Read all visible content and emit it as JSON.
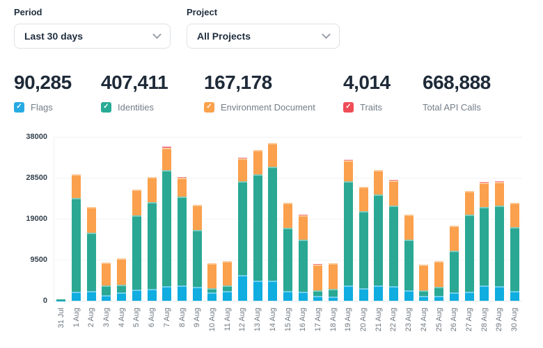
{
  "filters": {
    "period": {
      "label": "Period",
      "value": "Last 30 days"
    },
    "project": {
      "label": "Project",
      "value": "All Projects"
    }
  },
  "icons": {
    "check": "✓",
    "chevron": "chevron-down"
  },
  "stats": [
    {
      "value": "90,285",
      "label": "Flags",
      "has_checkbox": true,
      "color": "#27aae1"
    },
    {
      "value": "407,411",
      "label": "Identities",
      "has_checkbox": true,
      "color": "#27ab95"
    },
    {
      "value": "167,178",
      "label": "Environment Document",
      "has_checkbox": true,
      "color": "#fba14b"
    },
    {
      "value": "4,014",
      "label": "Traits",
      "has_checkbox": true,
      "color": "#ef4d56"
    },
    {
      "value": "668,888",
      "label": "Total API Calls",
      "has_checkbox": false
    }
  ],
  "chart_data": {
    "type": "bar",
    "stacked": true,
    "title": "",
    "xlabel": "",
    "ylabel": "",
    "ylim": [
      0,
      38000
    ],
    "yticks": [
      0,
      9500,
      19000,
      28500,
      38000
    ],
    "grid": true,
    "legend_position": "top-as-stat-checkboxes",
    "categories": [
      "31 Jul",
      "1 Aug",
      "2 Aug",
      "3 Aug",
      "4 Aug",
      "5 Aug",
      "6 Aug",
      "7 Aug",
      "8 Aug",
      "9 Aug",
      "10 Aug",
      "11 Aug",
      "12 Aug",
      "13 Aug",
      "14 Aug",
      "15 Aug",
      "16 Aug",
      "17 Aug",
      "18 Aug",
      "19 Aug",
      "20 Aug",
      "21 Aug",
      "22 Aug",
      "23 Aug",
      "24 Aug",
      "25 Aug",
      "26 Aug",
      "27 Aug",
      "28 Aug",
      "29 Aug",
      "30 Aug"
    ],
    "series": [
      {
        "name": "Flags",
        "color": "#0fade0",
        "values": [
          50,
          2150,
          2250,
          1350,
          1900,
          2600,
          2700,
          3350,
          3600,
          3200,
          2000,
          2300,
          5950,
          4700,
          4700,
          2250,
          2150,
          1200,
          950,
          3500,
          2950,
          3500,
          3400,
          2400,
          1050,
          1200,
          1900,
          2150,
          3600,
          3350,
          2300
        ]
      },
      {
        "name": "Identities",
        "color": "#2aa893",
        "values": [
          200,
          21750,
          13600,
          2150,
          1850,
          17250,
          20100,
          26850,
          20550,
          13200,
          950,
          1300,
          21700,
          24550,
          26300,
          14650,
          11950,
          1200,
          1750,
          24150,
          17750,
          21100,
          18600,
          11700,
          1350,
          2100,
          9650,
          17850,
          18150,
          18650,
          14800
        ]
      },
      {
        "name": "Environment Document",
        "color": "#fba04c",
        "values": [
          50,
          5400,
          5900,
          5350,
          6150,
          5950,
          5800,
          5250,
          4300,
          5900,
          5750,
          5650,
          5350,
          5650,
          5600,
          5750,
          5750,
          6000,
          6000,
          4850,
          5700,
          5600,
          5800,
          5900,
          5900,
          5850,
          5900,
          5500,
          5550,
          5550,
          5550
        ]
      },
      {
        "name": "Traits",
        "color": "#f2808d",
        "values": [
          0,
          0,
          0,
          0,
          0,
          0,
          0,
          250,
          150,
          0,
          0,
          0,
          200,
          100,
          0,
          100,
          100,
          100,
          0,
          200,
          0,
          0,
          200,
          0,
          100,
          0,
          0,
          0,
          300,
          150,
          0
        ]
      }
    ]
  }
}
